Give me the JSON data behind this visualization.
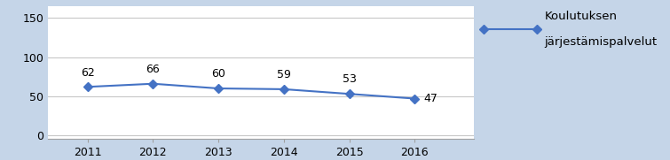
{
  "years": [
    2011,
    2012,
    2013,
    2014,
    2015,
    2016
  ],
  "values": [
    62,
    66,
    60,
    59,
    53,
    47
  ],
  "line_color": "#4472C4",
  "marker_style": "D",
  "marker_size": 5,
  "legend_label_line1": "Koulutuksen",
  "legend_label_line2": "järjestämispalvelut",
  "yticks": [
    0,
    50,
    100,
    150
  ],
  "ylim": [
    -5,
    165
  ],
  "xlim": [
    2010.4,
    2016.9
  ],
  "chart_bg": "#FFFFFF",
  "legend_bg": "#C5D5E8",
  "grid_color": "#C8C8C8",
  "tick_fontsize": 9,
  "annotation_fontsize": 9,
  "legend_fontsize": 9.5
}
